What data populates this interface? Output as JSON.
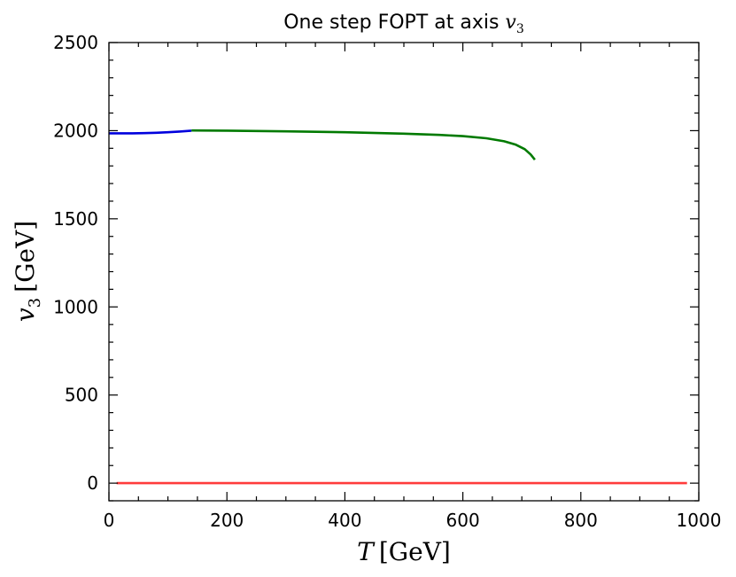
{
  "chart_data": {
    "type": "line",
    "title": {
      "text": "One step FOPT at axis ",
      "math_var": "v",
      "math_sub": "3"
    },
    "xlabel": {
      "var": "T",
      "unit": "[GeV]"
    },
    "ylabel": {
      "var": "v",
      "sub": "3",
      "unit": "[GeV]"
    },
    "xlim": [
      0,
      1000
    ],
    "ylim": [
      -100,
      2500
    ],
    "xticks": [
      0,
      200,
      400,
      600,
      800,
      1000
    ],
    "yticks": [
      0,
      500,
      1000,
      1500,
      2000,
      2500
    ],
    "x_minor_step": 50,
    "y_minor_step": 100,
    "grid": false,
    "series": [
      {
        "color": "#ff3b3b",
        "x": [
          13,
          100,
          200,
          300,
          400,
          500,
          600,
          700,
          800,
          900,
          980
        ],
        "y": [
          0,
          0,
          0,
          0,
          0,
          0,
          0,
          0,
          0,
          0,
          0
        ]
      },
      {
        "color": "#0000dd",
        "x": [
          0,
          20,
          40,
          60,
          80,
          100,
          120,
          140
        ],
        "y": [
          1985,
          1985,
          1985,
          1986,
          1988,
          1991,
          1995,
          2000
        ]
      },
      {
        "color": "#007a00",
        "x": [
          140,
          200,
          300,
          400,
          500,
          560,
          600,
          640,
          670,
          690,
          705,
          715,
          722
        ],
        "y": [
          2001,
          2000,
          1996,
          1991,
          1983,
          1976,
          1969,
          1957,
          1940,
          1920,
          1895,
          1865,
          1835
        ]
      }
    ]
  }
}
